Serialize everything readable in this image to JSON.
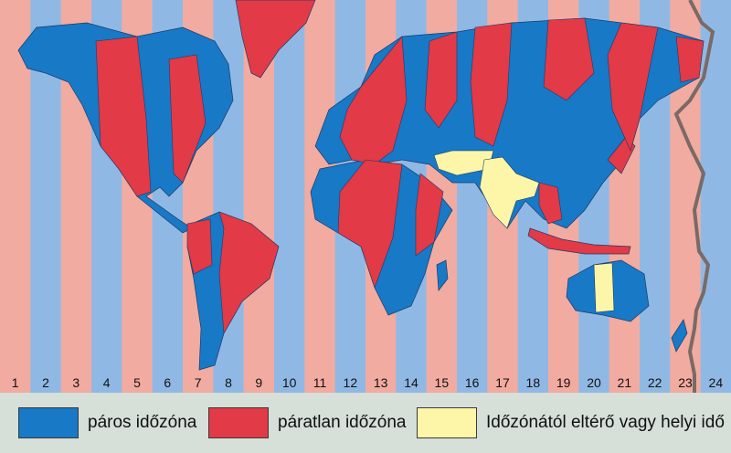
{
  "zones": [
    "1",
    "2",
    "3",
    "4",
    "5",
    "6",
    "7",
    "8",
    "9",
    "10",
    "11",
    "12",
    "13",
    "14",
    "15",
    "16",
    "17",
    "18",
    "19",
    "20",
    "21",
    "22",
    "23",
    "24"
  ],
  "colors": {
    "even_stripe": "#8fb9e4",
    "odd_stripe": "#f2aba0",
    "even_zone": "#1879c6",
    "odd_zone": "#e23a46",
    "local_time": "#fdf6a8",
    "date_line": "#7a6a66",
    "legend_bg": "#d6dfd8"
  },
  "legend": [
    {
      "label": "páros időzóna",
      "color": "#1879c6"
    },
    {
      "label": "páratlan időzóna",
      "color": "#e23a46"
    },
    {
      "label": "Időzónától eltérő vagy helyi idő",
      "color": "#fdf6a8"
    }
  ]
}
